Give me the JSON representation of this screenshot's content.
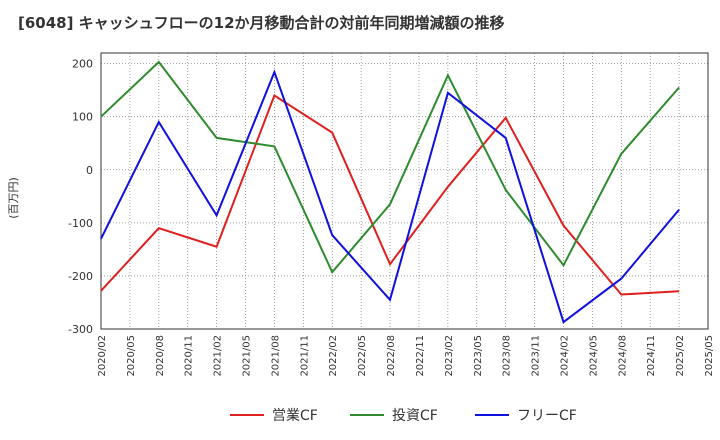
{
  "chart_data": {
    "type": "line",
    "title": "[6048]  キャッシュフローの12か月移動合計の対前年同期増減額の推移",
    "ylabel": "(百万円)",
    "xlabel": "",
    "ylim": [
      -300,
      220
    ],
    "yticks": [
      200,
      100,
      0,
      -100,
      -200,
      -300
    ],
    "ytick_labels": [
      "200",
      "100",
      "0",
      "-100",
      "-200",
      "-300"
    ],
    "x_tick_labels": [
      "2020/02",
      "2020/05",
      "2020/08",
      "2020/11",
      "2021/02",
      "2021/05",
      "2021/08",
      "2021/11",
      "2022/02",
      "2022/05",
      "2022/08",
      "2022/11",
      "2023/02",
      "2023/05",
      "2023/08",
      "2023/11",
      "2024/02",
      "2024/05",
      "2024/08",
      "2024/11",
      "2025/02",
      "2025/05"
    ],
    "legend_position": "bottom",
    "grid": true,
    "series": [
      {
        "name": "営業CF",
        "color": "#e02020",
        "points": [
          [
            "2020/02",
            -228
          ],
          [
            "2020/08",
            -110
          ],
          [
            "2021/02",
            -145
          ],
          [
            "2021/08",
            140
          ],
          [
            "2022/02",
            70
          ],
          [
            "2022/08",
            -178
          ],
          [
            "2023/02",
            -32
          ],
          [
            "2023/08",
            98
          ],
          [
            "2024/02",
            -105
          ],
          [
            "2024/08",
            -235
          ],
          [
            "2025/02",
            -229
          ]
        ]
      },
      {
        "name": "投資CF",
        "color": "#2e8b2e",
        "points": [
          [
            "2020/02",
            100
          ],
          [
            "2020/08",
            203
          ],
          [
            "2021/02",
            60
          ],
          [
            "2021/08",
            44
          ],
          [
            "2022/02",
            -193
          ],
          [
            "2022/08",
            -65
          ],
          [
            "2023/02",
            178
          ],
          [
            "2023/08",
            -38
          ],
          [
            "2024/02",
            -180
          ],
          [
            "2024/08",
            30
          ],
          [
            "2025/02",
            155
          ]
        ]
      },
      {
        "name": "フリーCF",
        "color": "#1010e0",
        "points": [
          [
            "2020/02",
            -130
          ],
          [
            "2020/08",
            90
          ],
          [
            "2021/02",
            -86
          ],
          [
            "2021/08",
            184
          ],
          [
            "2022/02",
            -123
          ],
          [
            "2022/08",
            -245
          ],
          [
            "2023/02",
            145
          ],
          [
            "2023/08",
            60
          ],
          [
            "2024/02",
            -287
          ],
          [
            "2024/08",
            -205
          ],
          [
            "2025/02",
            -75
          ]
        ]
      }
    ]
  }
}
